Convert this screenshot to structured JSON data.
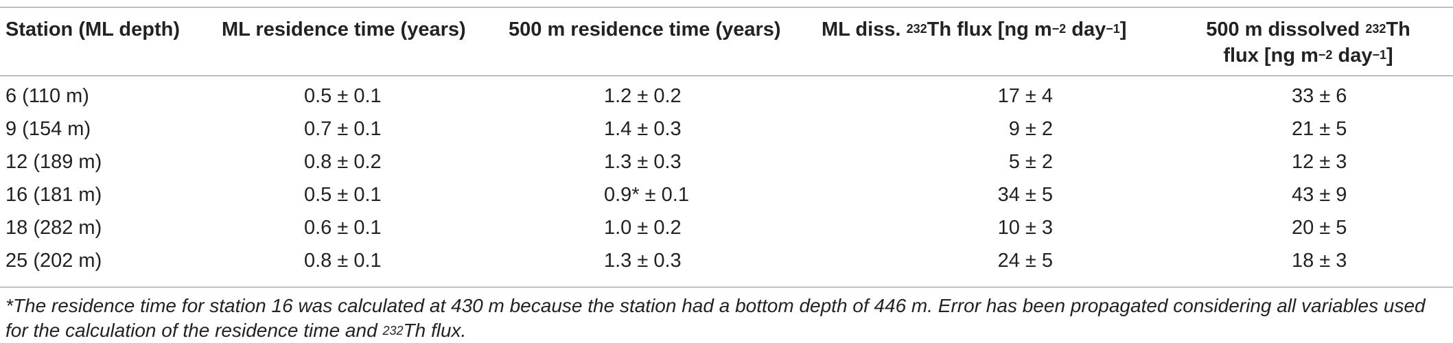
{
  "table": {
    "headers": {
      "station": "Station (ML depth)",
      "ml_residence": "ML residence time (years)",
      "res500": "500 m residence time (years)",
      "ml_flux_pre": "ML diss. ",
      "ml_flux_sup": "232",
      "ml_flux_mid": "Th flux [ng m",
      "ml_flux_exp1": "−2",
      "ml_flux_mid2": " day",
      "ml_flux_exp2": "−1",
      "ml_flux_post": "]",
      "flux500_line1_pre": "500 m dissolved ",
      "flux500_line1_sup": "232",
      "flux500_line1_post": "Th",
      "flux500_line2_pre": "flux [ng m",
      "flux500_line2_exp1": "−2",
      "flux500_line2_mid": " day",
      "flux500_line2_exp2": "−1",
      "flux500_line2_post": "]"
    },
    "rows": [
      {
        "station": "6 (110 m)",
        "ml_res": "0.5 ± 0.1",
        "res500": "1.2 ± 0.2",
        "ml_flux": "17 ± 4",
        "flux500": "33 ± 6"
      },
      {
        "station": "9 (154 m)",
        "ml_res": "0.7 ± 0.1",
        "res500": "1.4 ± 0.3",
        "ml_flux": "9 ± 2",
        "flux500": "21 ± 5"
      },
      {
        "station": "12 (189 m)",
        "ml_res": "0.8 ± 0.2",
        "res500": "1.3 ± 0.3",
        "ml_flux": "5 ± 2",
        "flux500": "12 ± 3"
      },
      {
        "station": "16 (181 m)",
        "ml_res": "0.5 ± 0.1",
        "res500": "0.9* ± 0.1",
        "ml_flux": "34 ± 5",
        "flux500": "43 ± 9"
      },
      {
        "station": "18 (282 m)",
        "ml_res": "0.6 ± 0.1",
        "res500": "1.0 ± 0.2",
        "ml_flux": "10 ± 3",
        "flux500": "20 ± 5"
      },
      {
        "station": "25 (202 m)",
        "ml_res": "0.8 ± 0.1",
        "res500": "1.3 ± 0.3",
        "ml_flux": "24 ± 5",
        "flux500": "18 ± 3"
      }
    ],
    "footnote": {
      "line1": "*The residence time for station 16 was calculated at 430 m because the station had a bottom depth of 446 m. Error has been propagated considering all variables used",
      "line2_pre": "for the calculation of the residence time and ",
      "line2_sup": "232",
      "line2_post": "Th flux."
    }
  }
}
